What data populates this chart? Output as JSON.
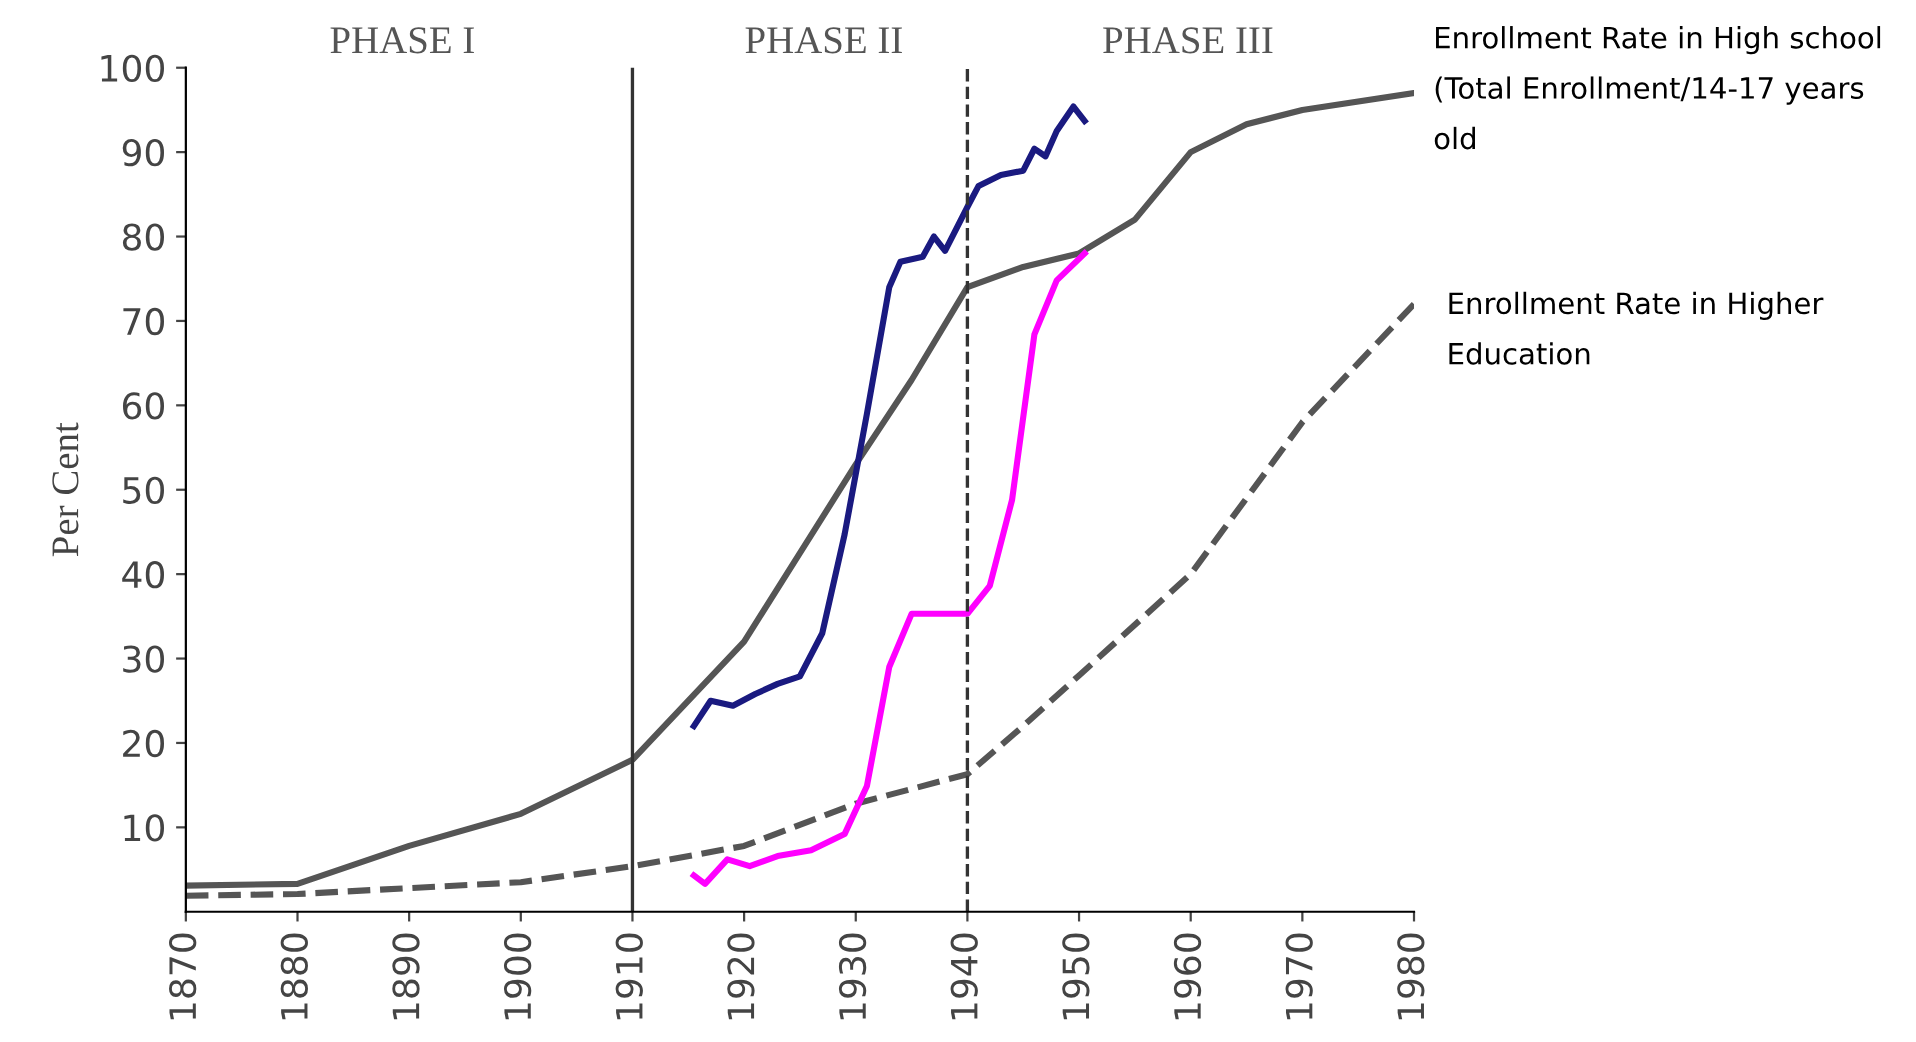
{
  "chart_data": {
    "type": "line",
    "ylabel": "Per Cent",
    "annotations": [
      "PHASE I",
      "PHASE II",
      "PHASE III"
    ],
    "xlim": [
      1870,
      1980
    ],
    "xticks": [
      1870,
      1880,
      1890,
      1900,
      1910,
      1920,
      1930,
      1940,
      1950,
      1960,
      1970,
      1980
    ],
    "ylim": [
      0,
      100
    ],
    "yticks": [
      10,
      20,
      30,
      40,
      50,
      60,
      70,
      80,
      90,
      100
    ],
    "grid": false,
    "legend": false,
    "marker": "none",
    "ref_lines": [
      {
        "axis": "x",
        "value": 1910,
        "color": "#333333",
        "line_style": "solid"
      },
      {
        "axis": "x",
        "value": 1940,
        "color": "#333333",
        "line_style": "dashed"
      }
    ],
    "series": [
      {
        "name": "Enrollment Rate in High school (Total Enrollment/14-17 years old",
        "color": "#555555",
        "line_style": "solid",
        "x": [
          1870,
          1880,
          1890,
          1900,
          1910,
          1920,
          1930,
          1935,
          1940,
          1945,
          1950,
          1955,
          1960,
          1965,
          1970,
          1980
        ],
        "values": [
          3.1,
          3.3,
          7.8,
          11.6,
          18,
          32,
          53,
          63,
          74,
          76.4,
          78,
          82,
          90,
          93.3,
          95,
          97
        ]
      },
      {
        "name": "Enrollment Rate in Higher Education",
        "color": "#555555",
        "line_style": "dashed",
        "x": [
          1870,
          1880,
          1890,
          1900,
          1910,
          1920,
          1930,
          1940,
          1945,
          1950,
          1960,
          1970,
          1980
        ],
        "values": [
          1.9,
          2.1,
          2.8,
          3.5,
          5.4,
          7.8,
          12.8,
          16.3,
          22,
          28,
          40,
          58,
          72
        ]
      },
      {
        "color": "#1a1a80",
        "line_style": "solid",
        "x": [
          1915.5,
          1917,
          1919,
          1921,
          1923,
          1925,
          1927,
          1929,
          1931,
          1933,
          1934,
          1936,
          1937,
          1938,
          1940,
          1941,
          1943,
          1945,
          1946,
          1947,
          1948,
          1949.5,
          1950.5
        ],
        "values": [
          22,
          25,
          24.4,
          25.8,
          27,
          27.9,
          33,
          44.7,
          59,
          74,
          77,
          77.6,
          80,
          78.3,
          83.5,
          86,
          87.3,
          87.8,
          90.4,
          89.5,
          92.5,
          95.4,
          93.7
        ]
      },
      {
        "color": "#ff00ff",
        "line_style": "solid",
        "x": [
          1915.5,
          1916.5,
          1918.5,
          1920.5,
          1923,
          1926,
          1929,
          1931,
          1933,
          1935,
          1940,
          1942,
          1944,
          1946,
          1948,
          1950.5
        ],
        "values": [
          4.3,
          3.3,
          6.2,
          5.4,
          6.6,
          7.3,
          9.2,
          14.9,
          29,
          35.3,
          35.3,
          38.6,
          48.8,
          68.4,
          74.8,
          78
        ]
      }
    ]
  }
}
